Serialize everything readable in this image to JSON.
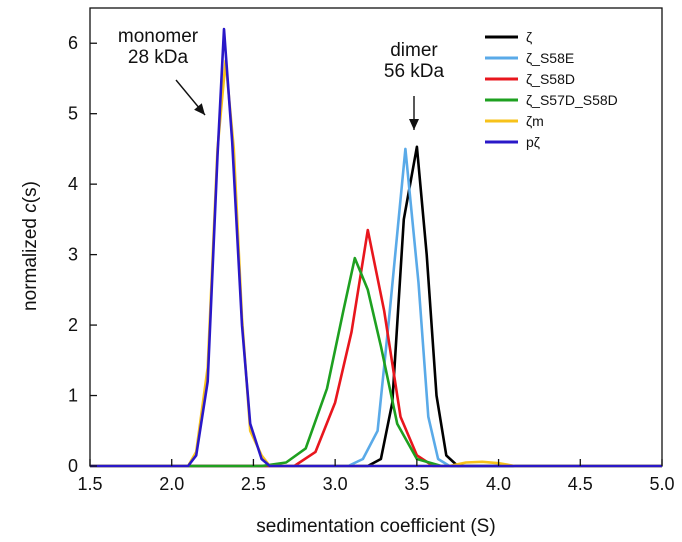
{
  "chart_data": {
    "type": "line",
    "xlabel": "sedimentation coefficient (S)",
    "ylabel_prefix": "normalized ",
    "ylabel_italic": "c",
    "ylabel_suffix": "(s)",
    "xlim": [
      1.5,
      5.0
    ],
    "ylim": [
      0,
      6.5
    ],
    "x_ticks": [
      1.5,
      2.0,
      2.5,
      3.0,
      3.5,
      4.0,
      4.5,
      5.0
    ],
    "x_tick_labels": [
      "1.5",
      "2.0",
      "2.5",
      "3.0",
      "3.5",
      "4.0",
      "4.5",
      "5.0"
    ],
    "y_ticks": [
      0,
      1,
      2,
      3,
      4,
      5,
      6
    ],
    "y_tick_labels": [
      "0",
      "1",
      "2",
      "3",
      "4",
      "5",
      "6"
    ],
    "grid": false,
    "legend_position": "top-right",
    "annotations": [
      {
        "lines": [
          "monomer",
          "28 kDa"
        ],
        "arrow_to": [
          2.28,
          5.0
        ]
      },
      {
        "lines": [
          "dimer",
          "56 kDa"
        ],
        "arrow_to": [
          3.44,
          4.6
        ]
      }
    ],
    "series": [
      {
        "name": "ζ",
        "color": "#000000",
        "x": [
          1.5,
          3.2,
          3.28,
          3.35,
          3.42,
          3.5,
          3.56,
          3.62,
          3.68,
          3.75,
          5.0
        ],
        "y": [
          0,
          0,
          0.1,
          0.9,
          3.5,
          4.53,
          3.0,
          1.0,
          0.15,
          0,
          0
        ]
      },
      {
        "name": "ζ_S58E",
        "color": "#5aaae8",
        "x": [
          1.5,
          3.08,
          3.17,
          3.26,
          3.33,
          3.43,
          3.51,
          3.57,
          3.63,
          3.7,
          5.0
        ],
        "y": [
          0,
          0,
          0.1,
          0.5,
          2.1,
          4.5,
          2.6,
          0.7,
          0.1,
          0,
          0
        ]
      },
      {
        "name": "ζ_S58D",
        "color": "#e8161d",
        "x": [
          1.5,
          2.75,
          2.88,
          3.0,
          3.1,
          3.2,
          3.3,
          3.4,
          3.5,
          3.6,
          5.0
        ],
        "y": [
          0,
          0,
          0.2,
          0.9,
          1.9,
          3.35,
          2.2,
          0.7,
          0.15,
          0,
          0
        ]
      },
      {
        "name": "ζ_S57D_S58D",
        "color": "#1ea020",
        "x": [
          1.5,
          2.55,
          2.7,
          2.82,
          2.95,
          3.05,
          3.12,
          3.2,
          3.28,
          3.38,
          3.5,
          3.65,
          5.0
        ],
        "y": [
          0,
          0,
          0.05,
          0.25,
          1.1,
          2.2,
          2.95,
          2.5,
          1.7,
          0.6,
          0.1,
          0,
          0
        ]
      },
      {
        "name": "ζm",
        "color": "#f7c21a",
        "x": [
          1.5,
          2.1,
          2.15,
          2.22,
          2.28,
          2.33,
          2.38,
          2.43,
          2.48,
          2.55,
          2.6,
          3.7,
          3.8,
          3.9,
          4.0,
          4.1,
          5.0
        ],
        "y": [
          0,
          0,
          0.2,
          1.4,
          4.5,
          5.75,
          4.5,
          2.1,
          0.5,
          0.15,
          0,
          0,
          0.05,
          0.06,
          0.04,
          0,
          0
        ]
      },
      {
        "name": "pζ",
        "color": "#2a18c8",
        "x": [
          1.5,
          2.1,
          2.15,
          2.22,
          2.28,
          2.32,
          2.37,
          2.43,
          2.48,
          2.55,
          2.6,
          5.0
        ],
        "y": [
          0,
          0,
          0.15,
          1.2,
          4.4,
          6.2,
          4.6,
          2.0,
          0.6,
          0.1,
          0,
          0
        ]
      }
    ]
  }
}
